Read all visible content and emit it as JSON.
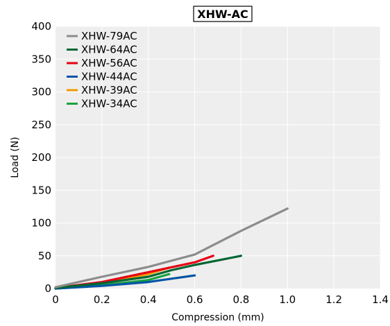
{
  "chart_data": {
    "type": "line",
    "title": "XHW-AC",
    "xlabel": "Compression (mm)",
    "ylabel": "Load (N)",
    "xlim": [
      0,
      1.4
    ],
    "ylim": [
      0,
      400
    ],
    "x_ticks": [
      "0",
      "0.2",
      "0.4",
      "0.6",
      "0.8",
      "1.0",
      "1.2",
      "1.4"
    ],
    "y_ticks": [
      "0",
      "50",
      "100",
      "150",
      "200",
      "250",
      "300",
      "350",
      "400"
    ],
    "grid": true,
    "legend_position": "top-left",
    "series": [
      {
        "name": "XHW-79AC",
        "color": "#8c8c8c",
        "x": [
          0,
          0.2,
          0.4,
          0.6,
          0.8,
          1.0
        ],
        "y": [
          2,
          18,
          33,
          52,
          88,
          122
        ]
      },
      {
        "name": "XHW-64AC",
        "color": "#006633",
        "x": [
          0,
          0.2,
          0.4,
          0.5,
          0.6,
          0.7,
          0.8
        ],
        "y": [
          1,
          8,
          18,
          28,
          36,
          43,
          50
        ]
      },
      {
        "name": "XHW-56AC",
        "color": "#e60012",
        "x": [
          0,
          0.2,
          0.4,
          0.6,
          0.68
        ],
        "y": [
          1,
          10,
          25,
          40,
          50
        ]
      },
      {
        "name": "XHW-44AC",
        "color": "#0054a6",
        "x": [
          0,
          0.2,
          0.4,
          0.5,
          0.6
        ],
        "y": [
          0,
          4,
          10,
          15,
          20
        ]
      },
      {
        "name": "XHW-39AC",
        "color": "#f39800",
        "x": [
          0,
          0.2,
          0.4,
          0.49
        ],
        "y": [
          0,
          9,
          22,
          32
        ]
      },
      {
        "name": "XHW-34AC",
        "color": "#1aa33c",
        "x": [
          0,
          0.2,
          0.4,
          0.49
        ],
        "y": [
          0,
          5,
          13,
          22
        ]
      }
    ]
  }
}
